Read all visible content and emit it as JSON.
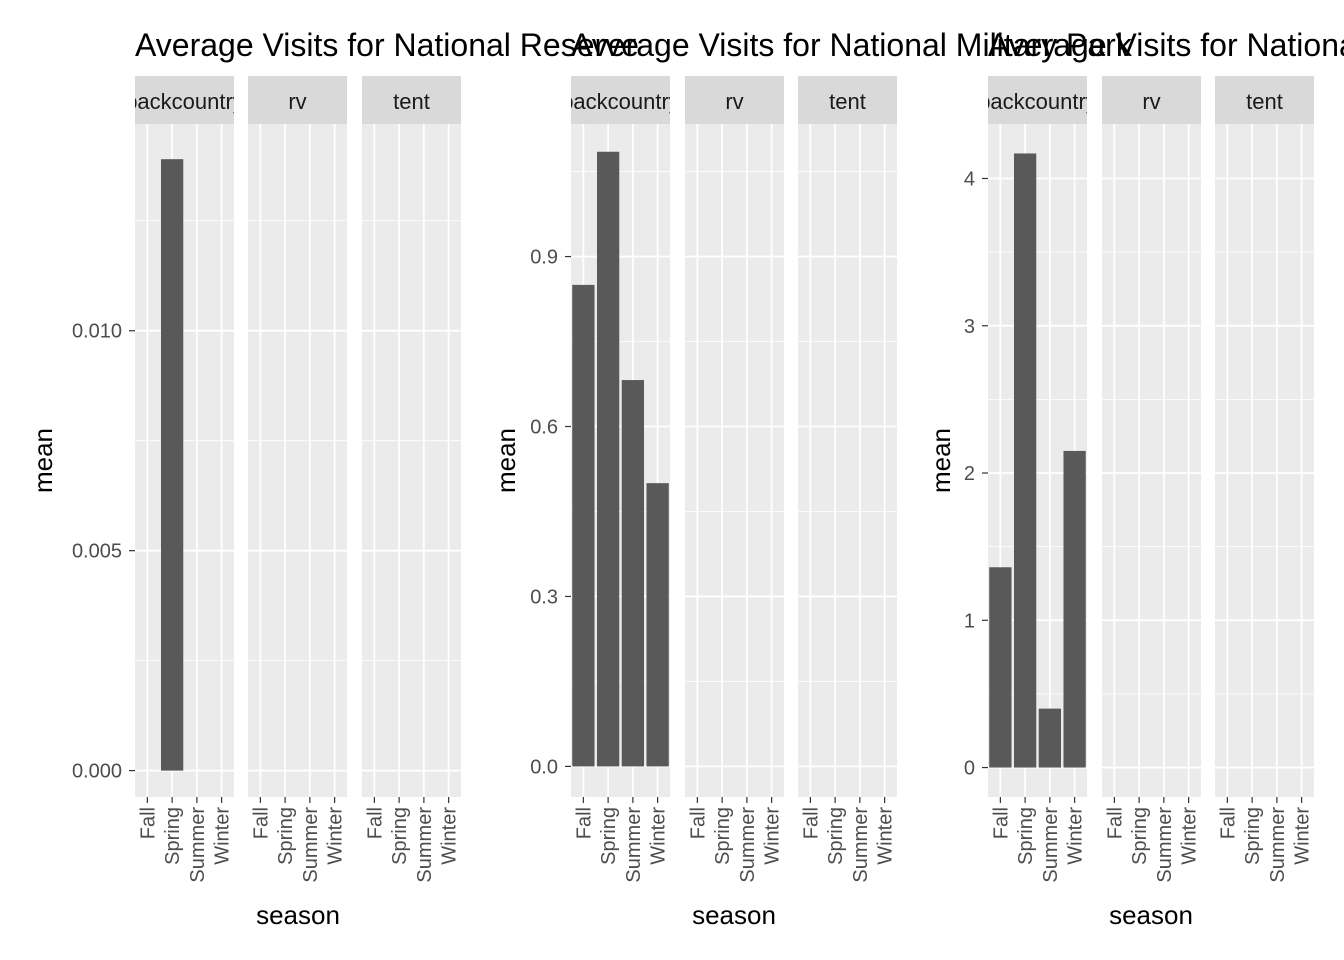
{
  "chart_data": [
    {
      "type": "bar",
      "title": "Average Visits for National Reserve",
      "xlabel": "season",
      "ylabel": "mean",
      "facets": [
        "backcountry",
        "rv",
        "tent"
      ],
      "categories": [
        "Fall",
        "Spring",
        "Summer",
        "Winter"
      ],
      "ylim": [
        -0.0006,
        0.0147
      ],
      "yticks": [
        0.0,
        0.005,
        0.01
      ],
      "ytick_labels": [
        "0.000",
        "0.005",
        "0.010"
      ],
      "series": [
        {
          "facet": "backcountry",
          "values": [
            0,
            0.0139,
            0,
            0
          ]
        },
        {
          "facet": "rv",
          "values": [
            0,
            0,
            0,
            0
          ]
        },
        {
          "facet": "tent",
          "values": [
            0,
            0,
            0,
            0
          ]
        }
      ],
      "bar_color": "#595959",
      "panel_color": "#EBEBEB",
      "strip_color": "#D9D9D9",
      "grid": true
    },
    {
      "type": "bar",
      "title": "Average Visits for National Military Park",
      "xlabel": "season",
      "ylabel": "mean",
      "facets": [
        "backcountry",
        "rv",
        "tent"
      ],
      "categories": [
        "Fall",
        "Spring",
        "Summer",
        "Winter"
      ],
      "ylim": [
        -0.054,
        1.134
      ],
      "yticks": [
        0.0,
        0.3,
        0.6,
        0.9
      ],
      "ytick_labels": [
        "0.0",
        "0.3",
        "0.6",
        "0.9"
      ],
      "series": [
        {
          "facet": "backcountry",
          "values": [
            0.85,
            1.085,
            0.682,
            0.5
          ]
        },
        {
          "facet": "rv",
          "values": [
            0,
            0,
            0,
            0
          ]
        },
        {
          "facet": "tent",
          "values": [
            0,
            0,
            0,
            0
          ]
        }
      ],
      "bar_color": "#595959",
      "panel_color": "#EBEBEB",
      "strip_color": "#D9D9D9",
      "grid": true
    },
    {
      "type": "bar",
      "title": "Average Visits for National Park",
      "xlabel": "season",
      "ylabel": "mean",
      "facets": [
        "backcountry",
        "rv",
        "tent"
      ],
      "categories": [
        "Fall",
        "Spring",
        "Summer",
        "Winter"
      ],
      "ylim": [
        -0.2,
        4.37
      ],
      "yticks": [
        0,
        1,
        2,
        3,
        4
      ],
      "ytick_labels": [
        "0",
        "1",
        "2",
        "3",
        "4"
      ],
      "series": [
        {
          "facet": "backcountry",
          "values": [
            1.36,
            4.17,
            0.4,
            2.15
          ]
        },
        {
          "facet": "rv",
          "values": [
            0,
            0,
            0,
            0
          ]
        },
        {
          "facet": "tent",
          "values": [
            0,
            0,
            0,
            0
          ]
        }
      ],
      "bar_color": "#595959",
      "panel_color": "#EBEBEB",
      "strip_color": "#D9D9D9",
      "grid": true
    }
  ]
}
